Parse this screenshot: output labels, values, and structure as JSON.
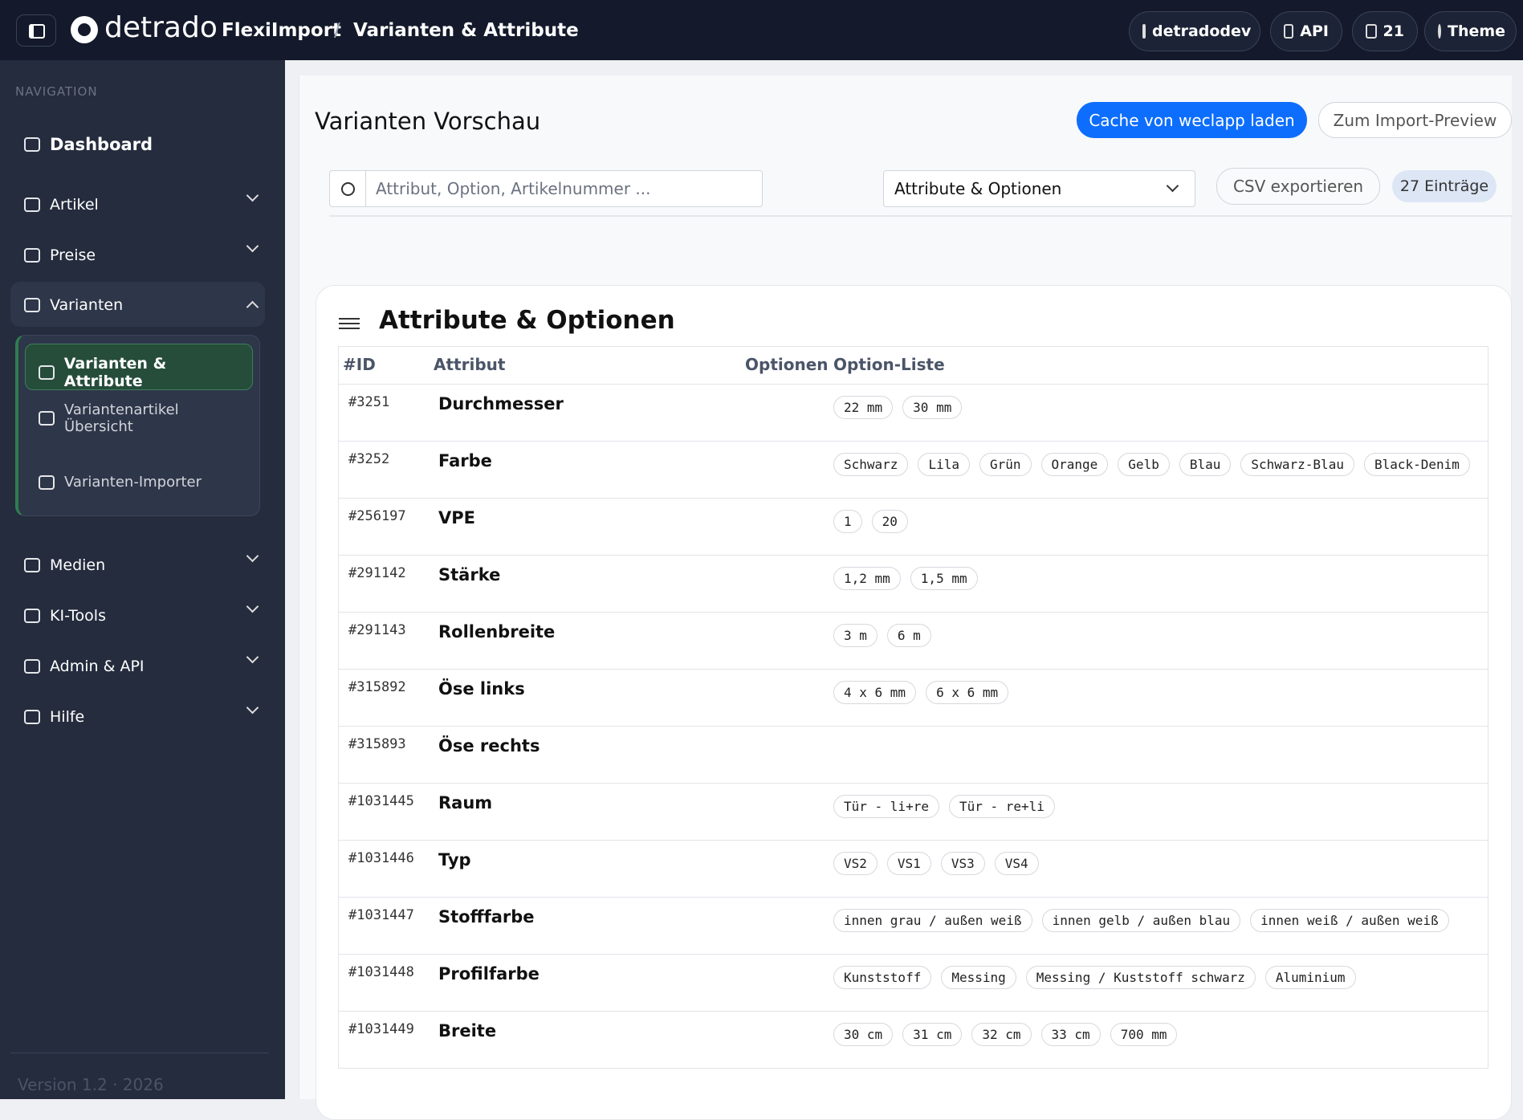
{
  "header": {
    "brand": "detrado",
    "breadcrumb": [
      "FlexiImport",
      "Varianten & Attribute"
    ],
    "separator": "/",
    "actions": [
      "detradodev",
      "API",
      "21",
      "Theme"
    ]
  },
  "sidebar": {
    "section": "NAVIGATION",
    "items": [
      "Dashboard",
      "Artikel",
      "Preise",
      "Varianten",
      "Medien",
      "KI-Tools",
      "Admin & API",
      "Hilfe"
    ],
    "submenu": [
      "Varianten & Attribute",
      "Variantenartikel Übersicht",
      "Varianten-Importer"
    ],
    "version": "Version 1.2 · 2026"
  },
  "page": {
    "title": "Varianten Vorschau",
    "buttons": [
      "Cache von weclapp laden",
      "Zum Import-Preview"
    ],
    "search_placeholder": "Attribut, Option, Artikelnummer ...",
    "filter": "Attribute & Optionen",
    "export": "CSV exportieren",
    "count": "27 Einträge"
  },
  "card": {
    "title": "Attribute & Optionen"
  },
  "table": {
    "columns": [
      "#ID",
      "Attribut",
      "Optionen",
      "Option-Liste"
    ],
    "rows": [
      {
        "id": "#3251",
        "attribute": "Durchmesser",
        "options": [
          "22 mm",
          "30 mm"
        ]
      },
      {
        "id": "#3252",
        "attribute": "Farbe",
        "options": [
          "Schwarz",
          "Lila",
          "Grün",
          "Orange",
          "Gelb",
          "Blau",
          "Schwarz-Blau",
          "Black-Denim"
        ]
      },
      {
        "id": "#256197",
        "attribute": "VPE",
        "options": [
          "1",
          "20"
        ]
      },
      {
        "id": "#291142",
        "attribute": "Stärke",
        "options": [
          "1,2 mm",
          "1,5 mm"
        ]
      },
      {
        "id": "#291143",
        "attribute": "Rollenbreite",
        "options": [
          "3 m",
          "6 m"
        ]
      },
      {
        "id": "#315892",
        "attribute": "Öse links",
        "options": [
          "4 x 6 mm",
          "6 x 6 mm"
        ]
      },
      {
        "id": "#315893",
        "attribute": "Öse rechts",
        "options": []
      },
      {
        "id": "#1031445",
        "attribute": "Raum",
        "options": [
          "Tür - li+re",
          "Tür - re+li"
        ]
      },
      {
        "id": "#1031446",
        "attribute": "Typ",
        "options": [
          "VS2",
          "VS1",
          "VS3",
          "VS4"
        ]
      },
      {
        "id": "#1031447",
        "attribute": "Stofffarbe",
        "options": [
          "innen grau / außen weiß",
          "innen gelb / außen blau",
          "innen weiß / außen weiß"
        ]
      },
      {
        "id": "#1031448",
        "attribute": "Profilfarbe",
        "options": [
          "Kunststoff",
          "Messing",
          "Messing / Kuststoff schwarz",
          "Aluminium"
        ]
      },
      {
        "id": "#1031449",
        "attribute": "Breite",
        "options": [
          "30 cm",
          "31 cm",
          "32 cm",
          "33 cm",
          "700 mm"
        ]
      }
    ]
  }
}
